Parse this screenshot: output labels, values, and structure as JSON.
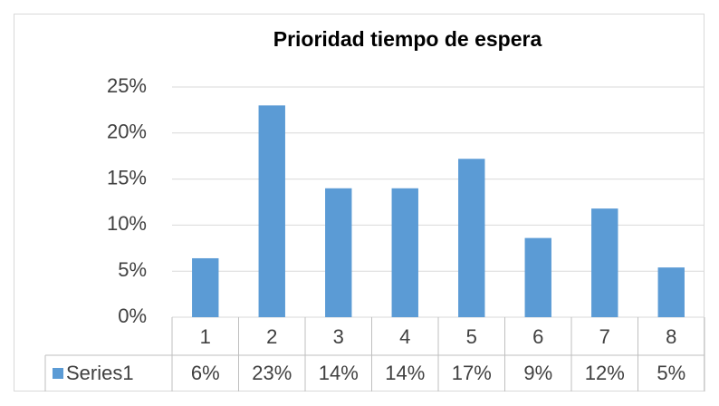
{
  "chart_data": {
    "type": "bar",
    "title": "Prioridad tiempo de espera",
    "categories": [
      "1",
      "2",
      "3",
      "4",
      "5",
      "6",
      "7",
      "8"
    ],
    "series": [
      {
        "name": "Series1",
        "color": "#5b9bd5",
        "values": [
          6.4,
          23,
          14,
          14,
          17.2,
          8.6,
          11.8,
          5.4
        ],
        "value_labels": [
          "6%",
          "23%",
          "14%",
          "14%",
          "17%",
          "9%",
          "12%",
          "5%"
        ]
      }
    ],
    "ylim": [
      0,
      25
    ],
    "yticks": [
      {
        "value": 0,
        "label": "0%"
      },
      {
        "value": 5,
        "label": "5%"
      },
      {
        "value": 10,
        "label": "10%"
      },
      {
        "value": 15,
        "label": "15%"
      },
      {
        "value": 20,
        "label": "20%"
      },
      {
        "value": 25,
        "label": "25%"
      }
    ],
    "grid": true
  }
}
